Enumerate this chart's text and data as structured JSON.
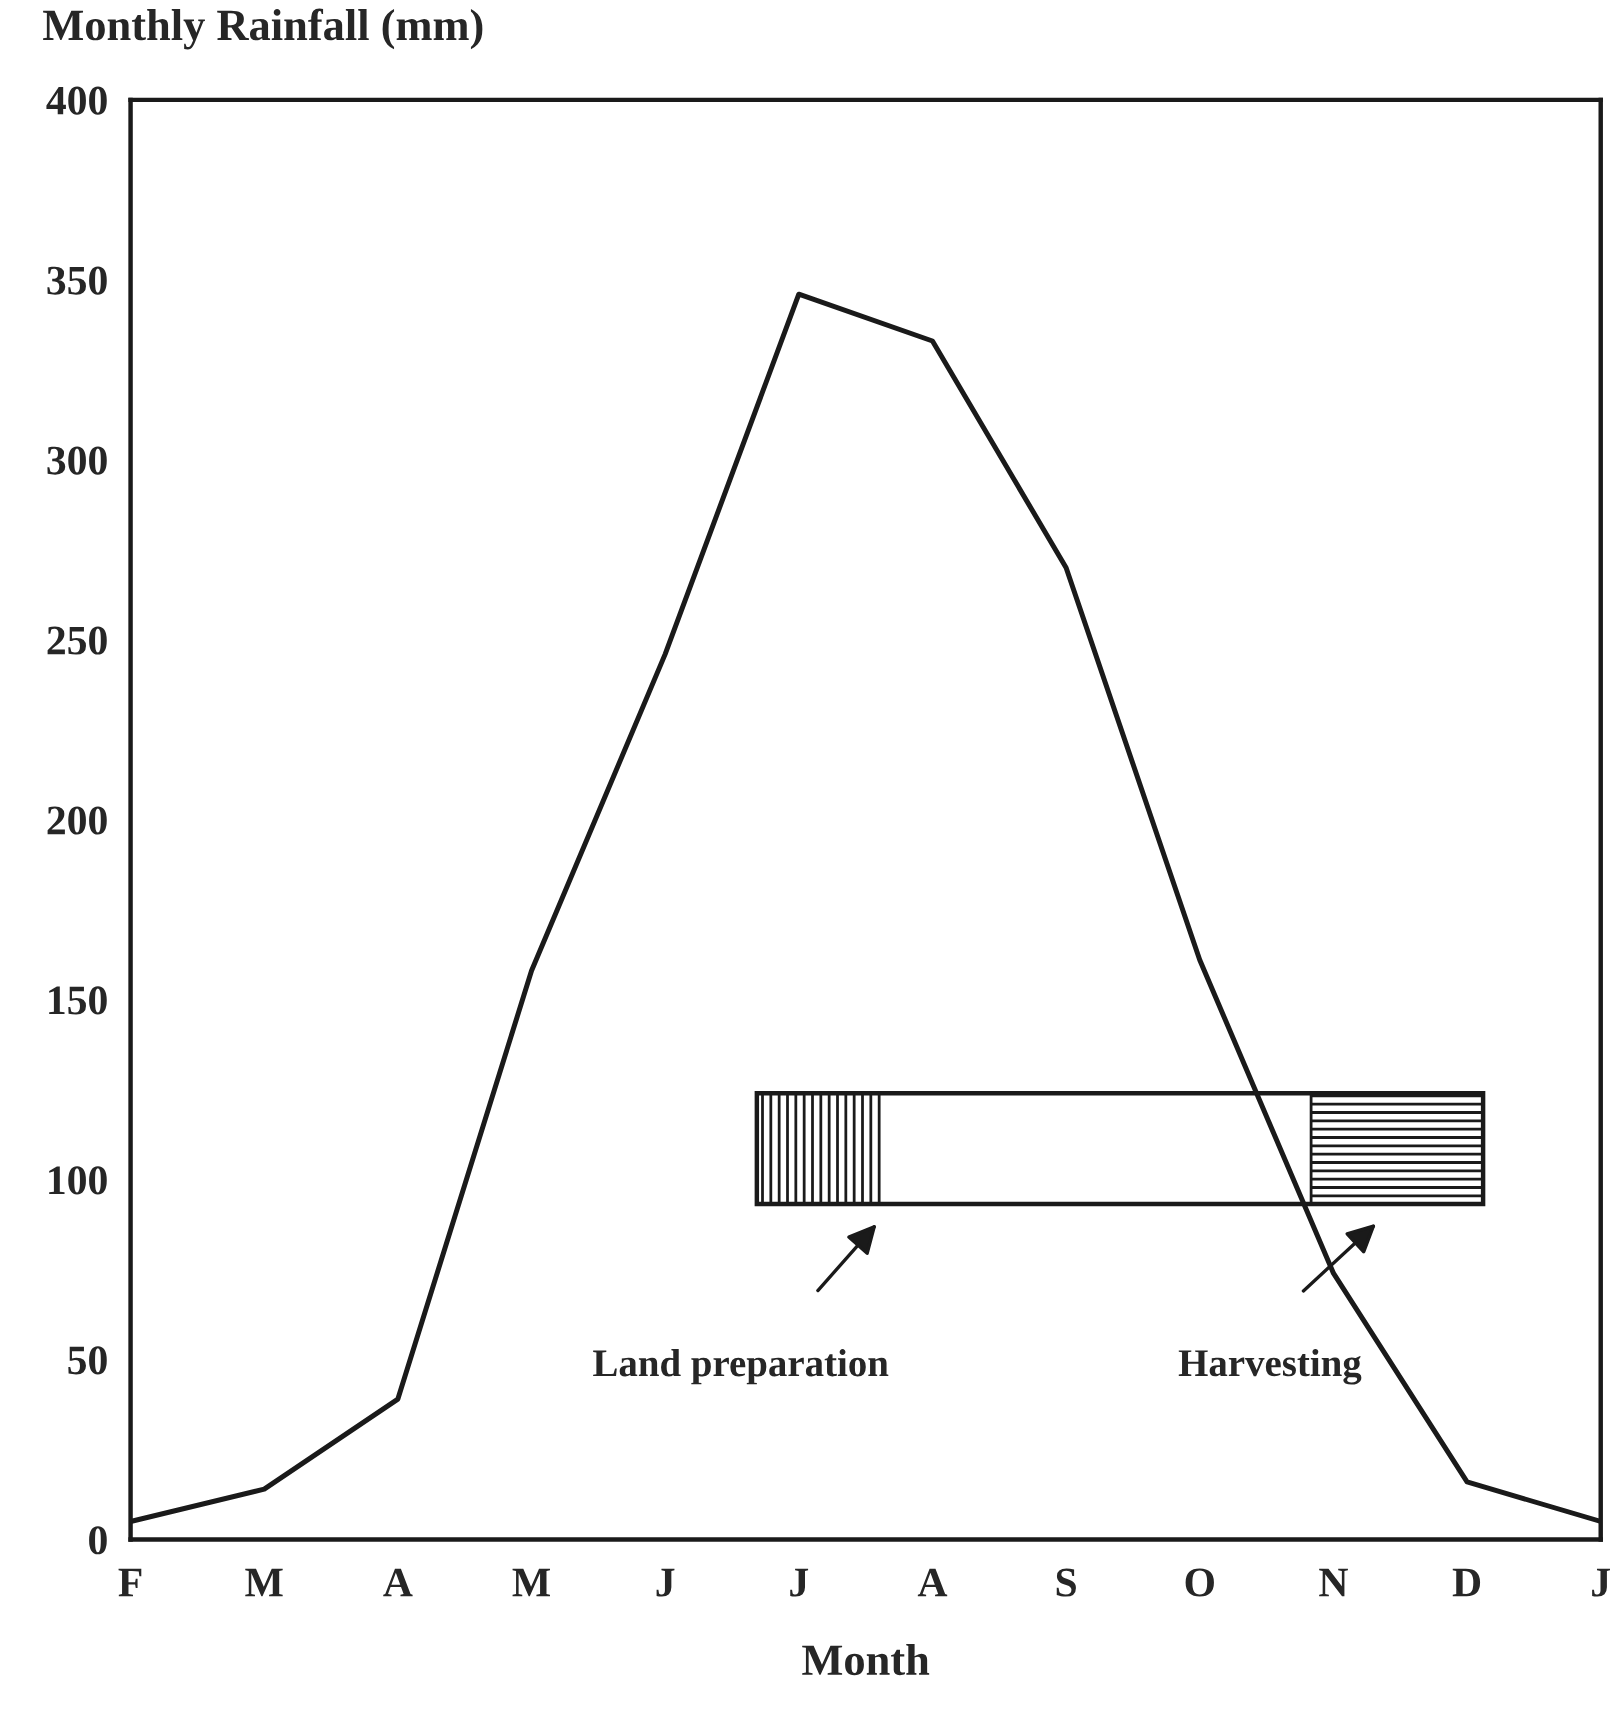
{
  "chart_data": {
    "type": "line",
    "ylabel": "Monthly Rainfall (mm)",
    "xlabel": "Month",
    "categories": [
      "F",
      "M",
      "A",
      "M",
      "J",
      "J",
      "A",
      "S",
      "O",
      "N",
      "D",
      "J"
    ],
    "series": [
      {
        "color": "#1a1a1a",
        "values": [
          5,
          14,
          39,
          158,
          246,
          346,
          333,
          270,
          161,
          74,
          16,
          5
        ]
      }
    ],
    "ylim": [
      0,
      400
    ],
    "yticks": [
      0,
      50,
      100,
      150,
      200,
      250,
      300,
      350,
      400
    ],
    "grid": false,
    "legend": false,
    "marker": "none",
    "line_style": "solid",
    "annotations": [
      "Land preparation",
      "Harvesting"
    ]
  }
}
